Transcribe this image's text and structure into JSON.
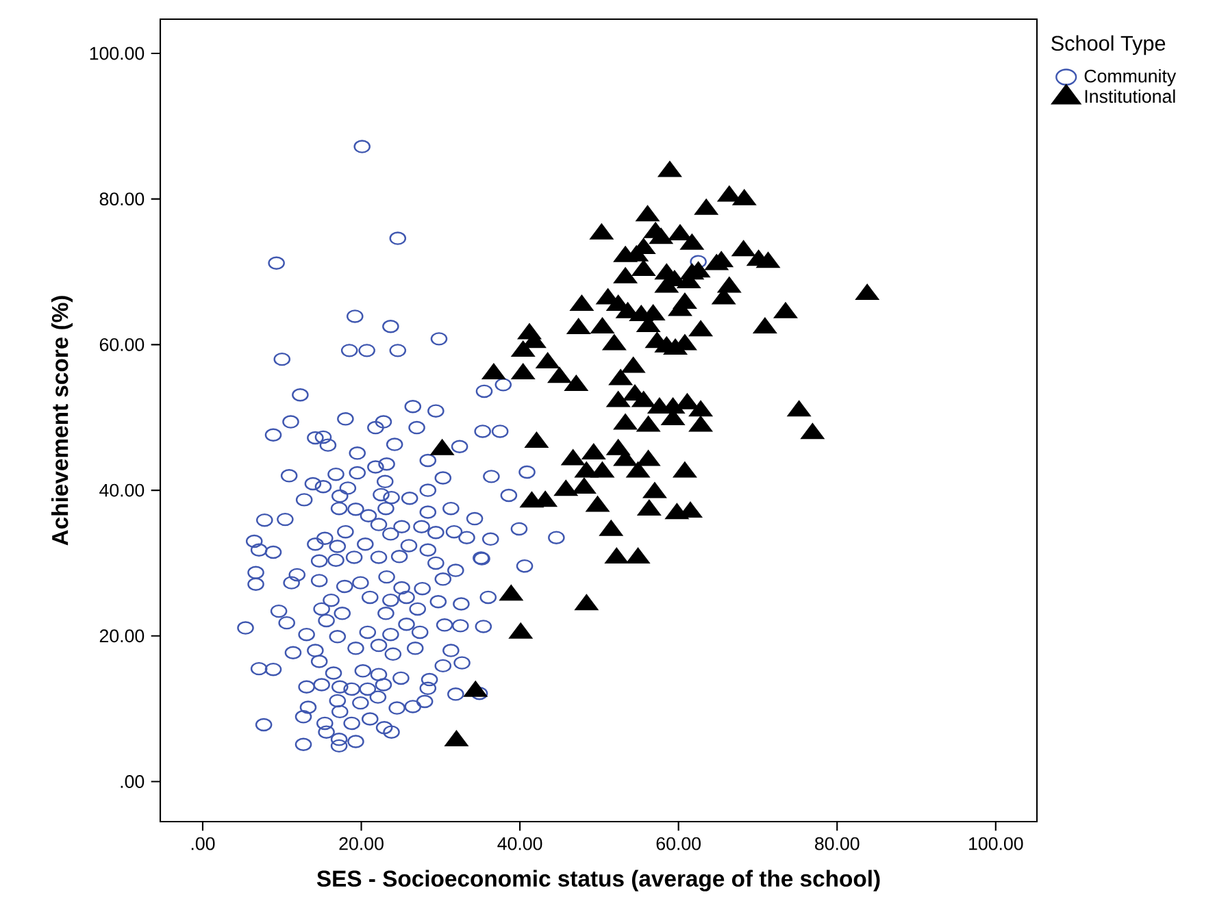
{
  "chart_data": {
    "type": "scatter",
    "xlabel": "SES - Socioeconomic status (average of the school)",
    "ylabel": "Achievement score (%)",
    "legend_title": "School Type",
    "legend": "right",
    "xlim": [
      -5.35,
      105.2
    ],
    "ylim": [
      -5.5,
      104.7
    ],
    "xticks": [
      {
        "value": 0,
        "label": ".00"
      },
      {
        "value": 20,
        "label": "20.00"
      },
      {
        "value": 40,
        "label": "40.00"
      },
      {
        "value": 60,
        "label": "60.00"
      },
      {
        "value": 80,
        "label": "80.00"
      },
      {
        "value": 100,
        "label": "100.00"
      }
    ],
    "yticks": [
      {
        "value": 0,
        "label": ".00"
      },
      {
        "value": 20,
        "label": "20.00"
      },
      {
        "value": 40,
        "label": "40.00"
      },
      {
        "value": 60,
        "label": "60.00"
      },
      {
        "value": 80,
        "label": "80.00"
      },
      {
        "value": 100,
        "label": "100.00"
      }
    ],
    "series": [
      {
        "name": "Community",
        "color": "#3f57b0",
        "marker": "circle",
        "x": [
          20.1,
          24.6,
          9.3,
          19.2,
          23.7,
          29.8,
          18.5,
          20.7,
          24.6,
          10.0,
          12.3,
          35.5,
          37.9,
          11.1,
          8.9,
          14.2,
          15.2,
          15.8,
          18.0,
          21.8,
          22.8,
          24.2,
          26.5,
          27.0,
          29.4,
          35.3,
          37.5,
          32.4,
          19.5,
          28.4,
          10.9,
          13.9,
          15.2,
          16.8,
          19.5,
          21.8,
          23.2,
          23.0,
          18.3,
          12.8,
          17.3,
          22.5,
          23.8,
          26.1,
          28.4,
          30.3,
          36.4,
          40.9,
          38.6,
          17.2,
          19.3,
          23.1,
          7.8,
          10.4,
          20.9,
          22.2,
          28.4,
          31.3,
          34.3,
          39.9,
          18.0,
          23.7,
          25.1,
          27.6,
          29.4,
          31.7,
          33.3,
          36.3,
          6.5,
          7.1,
          8.9,
          14.2,
          15.4,
          17.0,
          20.5,
          26.0,
          28.4,
          14.7,
          16.8,
          19.1,
          22.2,
          24.8,
          29.4,
          31.9,
          35.2,
          40.6,
          6.7,
          6.7,
          11.9,
          11.2,
          14.7,
          17.9,
          19.9,
          23.2,
          25.1,
          27.7,
          30.3,
          16.2,
          21.1,
          23.7,
          25.7,
          29.7,
          32.6,
          36.0,
          15.0,
          17.6,
          23.1,
          27.1,
          9.6,
          10.6,
          5.4,
          13.1,
          15.6,
          20.8,
          23.7,
          25.7,
          27.4,
          30.5,
          32.5,
          35.4,
          17.0,
          14.2,
          11.4,
          19.3,
          22.2,
          24.0,
          26.8,
          31.3,
          7.1,
          8.9,
          14.7,
          16.5,
          20.2,
          22.2,
          25.0,
          30.3,
          32.7,
          13.1,
          15.0,
          17.3,
          18.8,
          20.8,
          22.8,
          28.6,
          28.4,
          31.9,
          34.9,
          13.3,
          17.0,
          19.9,
          22.1,
          24.5,
          28.0,
          26.5,
          12.7,
          15.4,
          17.3,
          18.8,
          21.1,
          22.9,
          23.8,
          7.7,
          12.7,
          15.6,
          17.2,
          17.2,
          19.3,
          62.5,
          44.6,
          35.1
        ],
        "values": [
          87.2,
          74.6,
          71.2,
          63.9,
          62.5,
          60.8,
          59.2,
          59.2,
          59.2,
          58.0,
          53.1,
          53.6,
          54.5,
          49.4,
          47.6,
          47.2,
          47.3,
          46.2,
          49.8,
          48.6,
          49.4,
          46.3,
          51.5,
          48.6,
          50.9,
          48.1,
          48.1,
          46.0,
          45.1,
          44.1,
          42.0,
          40.9,
          40.5,
          42.2,
          42.4,
          43.2,
          43.6,
          41.2,
          40.3,
          38.7,
          39.2,
          39.4,
          39.0,
          38.9,
          40.0,
          41.7,
          41.9,
          42.5,
          39.3,
          37.5,
          37.4,
          37.5,
          35.9,
          36.0,
          36.5,
          35.3,
          37.0,
          37.5,
          36.1,
          34.7,
          34.3,
          34.0,
          35.0,
          35.0,
          34.2,
          34.3,
          33.5,
          33.3,
          33.0,
          31.8,
          31.5,
          32.6,
          33.4,
          32.3,
          32.6,
          32.4,
          31.8,
          30.3,
          30.4,
          30.8,
          30.8,
          30.9,
          30.0,
          29.0,
          30.6,
          29.6,
          28.7,
          27.1,
          28.4,
          27.3,
          27.6,
          26.8,
          27.3,
          28.1,
          26.6,
          26.5,
          27.8,
          24.9,
          25.3,
          24.9,
          25.3,
          24.7,
          24.4,
          25.3,
          23.7,
          23.1,
          23.1,
          23.7,
          23.4,
          21.8,
          21.1,
          20.2,
          22.1,
          20.5,
          20.2,
          21.6,
          20.5,
          21.5,
          21.4,
          21.3,
          19.9,
          18.0,
          17.7,
          18.3,
          18.7,
          17.5,
          18.3,
          18.0,
          15.5,
          15.4,
          16.5,
          14.9,
          15.2,
          14.7,
          14.2,
          15.9,
          16.3,
          13.0,
          13.3,
          13.0,
          12.7,
          12.7,
          13.3,
          14.0,
          12.8,
          12.0,
          12.1,
          10.2,
          11.1,
          10.8,
          11.6,
          10.1,
          11.0,
          10.3,
          8.9,
          8.0,
          9.6,
          8.0,
          8.6,
          7.4,
          6.8,
          7.8,
          5.1,
          6.8,
          5.8,
          4.9,
          5.5,
          71.4,
          33.5,
          30.7
        ]
      },
      {
        "name": "Institutional",
        "color": "#000000",
        "marker": "triangle",
        "x": [
          58.9,
          66.4,
          68.3,
          63.5,
          56.1,
          50.3,
          57.1,
          60.2,
          57.8,
          61.7,
          55.6,
          68.2,
          70.1,
          71.3,
          53.3,
          54.7,
          65.4,
          64.8,
          55.6,
          58.5,
          61.7,
          62.5,
          53.3,
          59.5,
          61.3,
          58.5,
          66.4,
          65.7,
          83.8,
          47.8,
          51.1,
          52.4,
          53.6,
          55.3,
          56.8,
          60.8,
          60.2,
          73.5,
          47.4,
          50.4,
          56.2,
          62.8,
          70.9,
          51.9,
          57.3,
          58.5,
          60.8,
          59.6,
          41.2,
          41.8,
          40.4,
          43.5,
          36.7,
          40.4,
          45.0,
          47.1,
          54.3,
          52.7,
          52.4,
          54.5,
          55.6,
          57.6,
          59.3,
          61.1,
          62.8,
          59.3,
          53.3,
          56.2,
          62.8,
          75.2,
          76.9,
          30.2,
          42.1,
          52.4,
          49.3,
          46.7,
          53.3,
          56.2,
          48.4,
          50.4,
          54.9,
          60.8,
          48.1,
          45.8,
          41.5,
          43.2,
          57.0,
          49.8,
          56.3,
          59.8,
          61.5,
          51.5,
          52.2,
          54.9,
          38.9,
          48.4,
          40.1,
          34.4,
          32.0
        ],
        "values": [
          83.8,
          80.4,
          79.9,
          78.6,
          77.7,
          75.2,
          75.4,
          75.1,
          74.6,
          73.8,
          73.2,
          72.9,
          71.6,
          71.3,
          72.1,
          72.2,
          71.4,
          71.0,
          70.2,
          69.7,
          69.7,
          70.0,
          69.2,
          68.8,
          68.5,
          67.9,
          67.9,
          66.3,
          66.9,
          65.4,
          66.3,
          65.4,
          64.4,
          64.0,
          64.1,
          65.7,
          64.7,
          64.4,
          62.2,
          62.3,
          62.5,
          61.9,
          62.3,
          60.0,
          60.3,
          59.7,
          60.0,
          59.4,
          61.5,
          60.3,
          59.1,
          57.5,
          56.0,
          56.0,
          55.5,
          54.4,
          56.9,
          55.2,
          52.2,
          53.1,
          52.2,
          51.3,
          51.3,
          51.9,
          50.9,
          49.7,
          49.1,
          48.8,
          48.8,
          50.9,
          47.8,
          45.6,
          46.6,
          45.6,
          45.0,
          44.2,
          44.1,
          44.1,
          42.5,
          42.5,
          42.5,
          42.5,
          40.3,
          40.0,
          38.4,
          38.5,
          39.7,
          37.8,
          37.3,
          36.8,
          37.0,
          34.5,
          30.7,
          30.7,
          25.6,
          24.3,
          20.4,
          12.4,
          5.6
        ]
      }
    ]
  }
}
